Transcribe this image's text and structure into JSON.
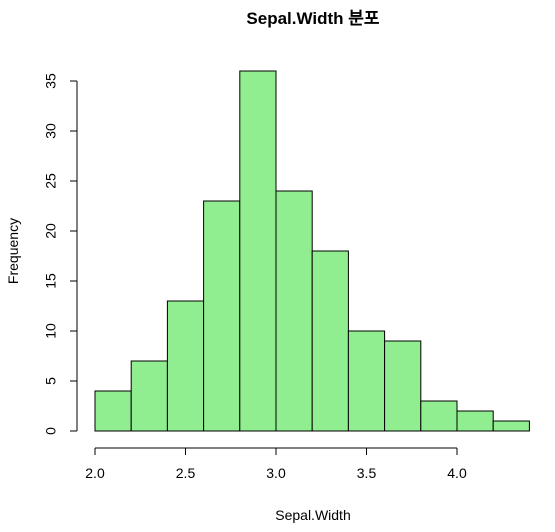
{
  "chart_data": {
    "type": "bar",
    "title": "Sepal.Width 분포",
    "xlabel": "Sepal.Width",
    "ylabel": "Frequency",
    "bins": [
      {
        "start": 2.0,
        "end": 2.2,
        "count": 4
      },
      {
        "start": 2.2,
        "end": 2.4,
        "count": 7
      },
      {
        "start": 2.4,
        "end": 2.6,
        "count": 13
      },
      {
        "start": 2.6,
        "end": 2.8,
        "count": 23
      },
      {
        "start": 2.8,
        "end": 3.0,
        "count": 36
      },
      {
        "start": 3.0,
        "end": 3.2,
        "count": 24
      },
      {
        "start": 3.2,
        "end": 3.4,
        "count": 18
      },
      {
        "start": 3.4,
        "end": 3.6,
        "count": 10
      },
      {
        "start": 3.6,
        "end": 3.8,
        "count": 9
      },
      {
        "start": 3.8,
        "end": 4.0,
        "count": 3
      },
      {
        "start": 4.0,
        "end": 4.2,
        "count": 2
      },
      {
        "start": 4.2,
        "end": 4.4,
        "count": 1
      }
    ],
    "xlim": [
      2.0,
      4.4
    ],
    "ylim": [
      0,
      36
    ],
    "x_ticks": [
      "2.0",
      "2.5",
      "3.0",
      "3.5",
      "4.0"
    ],
    "y_ticks": [
      "0",
      "5",
      "10",
      "15",
      "20",
      "25",
      "30",
      "35"
    ],
    "bar_color": "#90EE90",
    "border_color": "#000000",
    "grid": false
  }
}
